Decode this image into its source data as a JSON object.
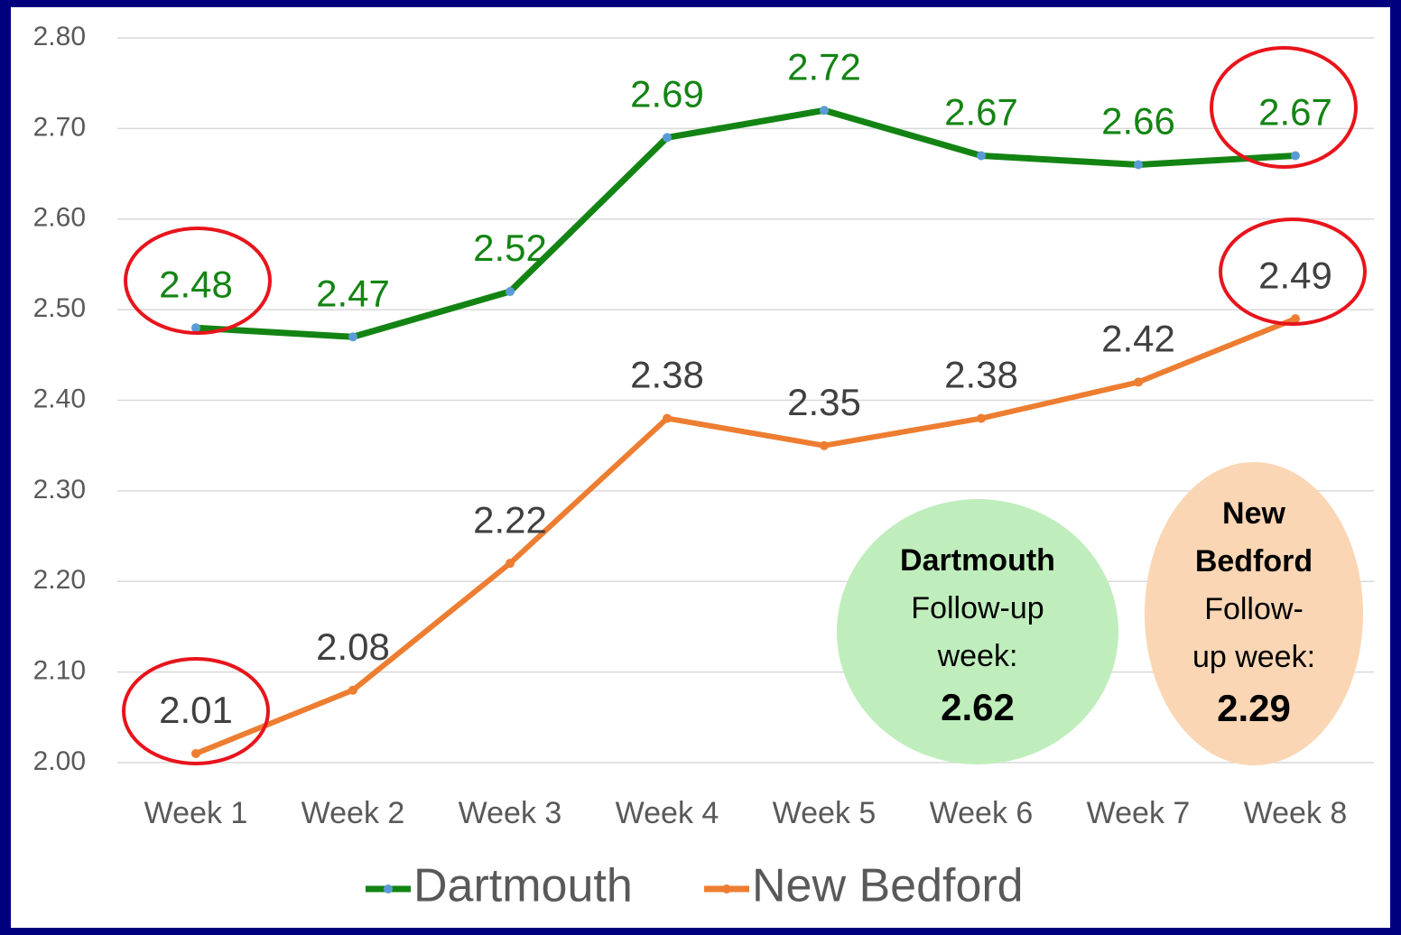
{
  "chart_data": {
    "type": "line",
    "categories": [
      "Week 1",
      "Week 2",
      "Week 3",
      "Week 4",
      "Week 5",
      "Week 6",
      "Week 7",
      "Week 8"
    ],
    "series": [
      {
        "name": "Dartmouth",
        "color": "#138413",
        "marker_color": "#5b9bd5",
        "label_color": "#138413",
        "values": [
          2.48,
          2.47,
          2.52,
          2.69,
          2.72,
          2.67,
          2.66,
          2.67
        ]
      },
      {
        "name": "New Bedford",
        "color": "#ed7d31",
        "marker_color": "#ed7d31",
        "label_color": "#404040",
        "values": [
          2.01,
          2.08,
          2.22,
          2.38,
          2.35,
          2.38,
          2.42,
          2.49
        ]
      }
    ],
    "ylim": [
      2.0,
      2.8
    ],
    "yticks": [
      {
        "value": 2.0,
        "label": "2.00"
      },
      {
        "value": 2.1,
        "label": "2.10"
      },
      {
        "value": 2.2,
        "label": "2.20"
      },
      {
        "value": 2.3,
        "label": "2.30"
      },
      {
        "value": 2.4,
        "label": "2.40"
      },
      {
        "value": 2.5,
        "label": "2.50"
      },
      {
        "value": 2.6,
        "label": "2.60"
      },
      {
        "value": 2.7,
        "label": "2.70"
      },
      {
        "value": 2.8,
        "label": "2.80"
      }
    ],
    "grid": true,
    "legend": "bottom",
    "annotations": [
      {
        "name_lines": [
          "Dartmouth"
        ],
        "text_lines": [
          "Follow-up",
          "week:"
        ],
        "value": 2.62,
        "color": "#bfeebc"
      },
      {
        "name_lines": [
          "New",
          "Bedford"
        ],
        "text_lines": [
          "Follow-",
          "up week:"
        ],
        "value": 2.29,
        "color": "#fad6b4"
      }
    ]
  }
}
